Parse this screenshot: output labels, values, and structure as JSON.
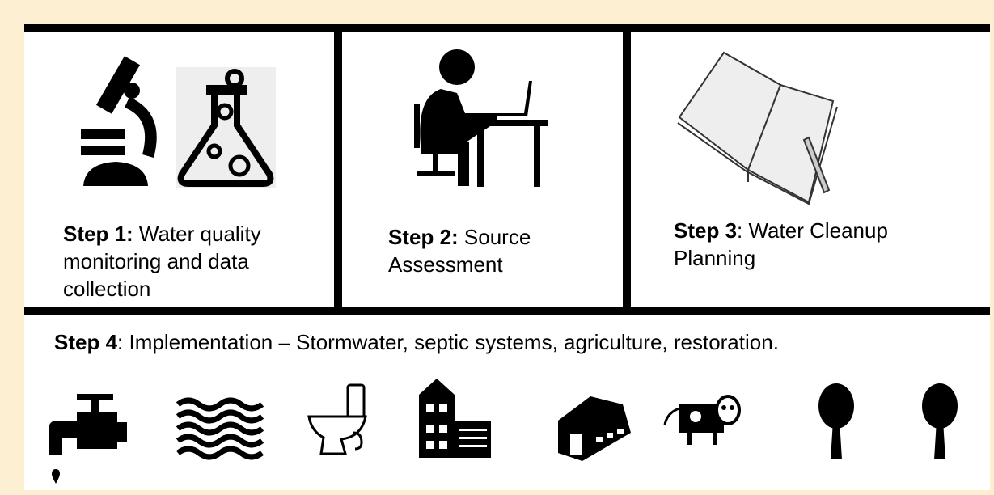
{
  "steps": [
    {
      "label": "Step 1:",
      "text": "Water quality monitoring and data collection"
    },
    {
      "label": "Step 2:",
      "text": "Source Assessment"
    },
    {
      "label": "Step 3",
      "text": ": Water Cleanup Planning"
    },
    {
      "label": "Step 4",
      "text": ": Implementation – Stormwater, septic systems, agriculture, restoration."
    }
  ]
}
